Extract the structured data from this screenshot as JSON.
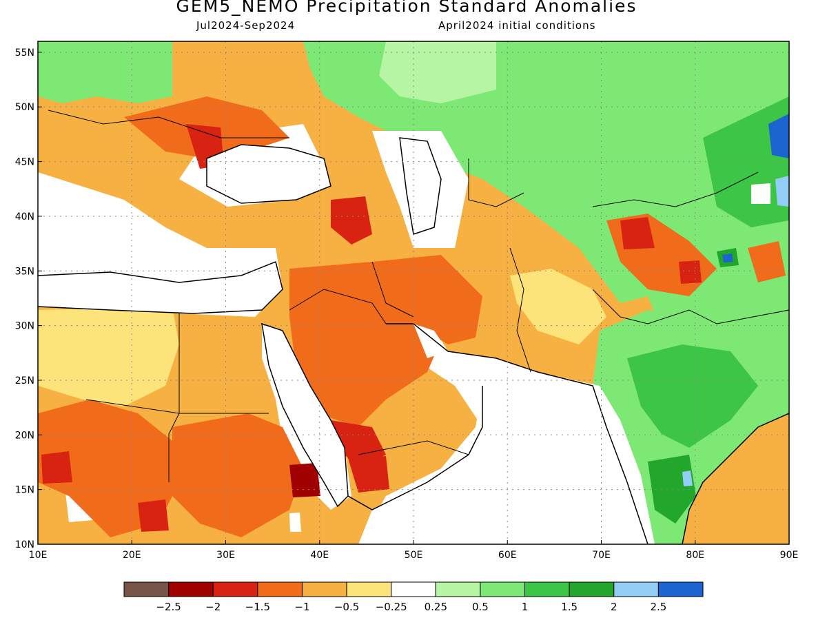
{
  "header": {
    "title": "GEM5_NEMO Precipitation Standard Anomalies",
    "period": "Jul2024-Sep2024",
    "initial_conditions": "April2024 initial conditions"
  },
  "map": {
    "lon_range": [
      10,
      90
    ],
    "lat_range": [
      10,
      56
    ],
    "lon_ticks": [
      {
        "value": 10,
        "label": "10E"
      },
      {
        "value": 20,
        "label": "20E"
      },
      {
        "value": 30,
        "label": "30E"
      },
      {
        "value": 40,
        "label": "40E"
      },
      {
        "value": 50,
        "label": "50E"
      },
      {
        "value": 60,
        "label": "60E"
      },
      {
        "value": 70,
        "label": "70E"
      },
      {
        "value": 80,
        "label": "80E"
      },
      {
        "value": 90,
        "label": "90E"
      }
    ],
    "lat_ticks": [
      {
        "value": 10,
        "label": "10N"
      },
      {
        "value": 15,
        "label": "15N"
      },
      {
        "value": 20,
        "label": "20N"
      },
      {
        "value": 25,
        "label": "25N"
      },
      {
        "value": 30,
        "label": "30N"
      },
      {
        "value": 35,
        "label": "35N"
      },
      {
        "value": 40,
        "label": "40N"
      },
      {
        "value": 45,
        "label": "45N"
      },
      {
        "value": 50,
        "label": "50N"
      },
      {
        "value": 55,
        "label": "55N"
      }
    ],
    "grid_lines": true,
    "regions": [
      {
        "level": "dry_0.5",
        "lon": [
          10,
          90
        ],
        "lat": [
          10,
          56
        ],
        "note": "base"
      }
    ]
  },
  "colorbar": {
    "colors": [
      "#765548",
      "#a00000",
      "#d92312",
      "#f06b1a",
      "#f7b142",
      "#fde47a",
      "#ffffff",
      "#b5f5a3",
      "#7ee874",
      "#3dc546",
      "#22a62b",
      "#92cdf5",
      "#1c64d0"
    ],
    "labels": [
      "-2.5",
      "-2",
      "-1.5",
      "-1",
      "-0.5",
      "-0.25",
      "0.25",
      "0.5",
      "1",
      "1.5",
      "2",
      "2.5"
    ]
  }
}
